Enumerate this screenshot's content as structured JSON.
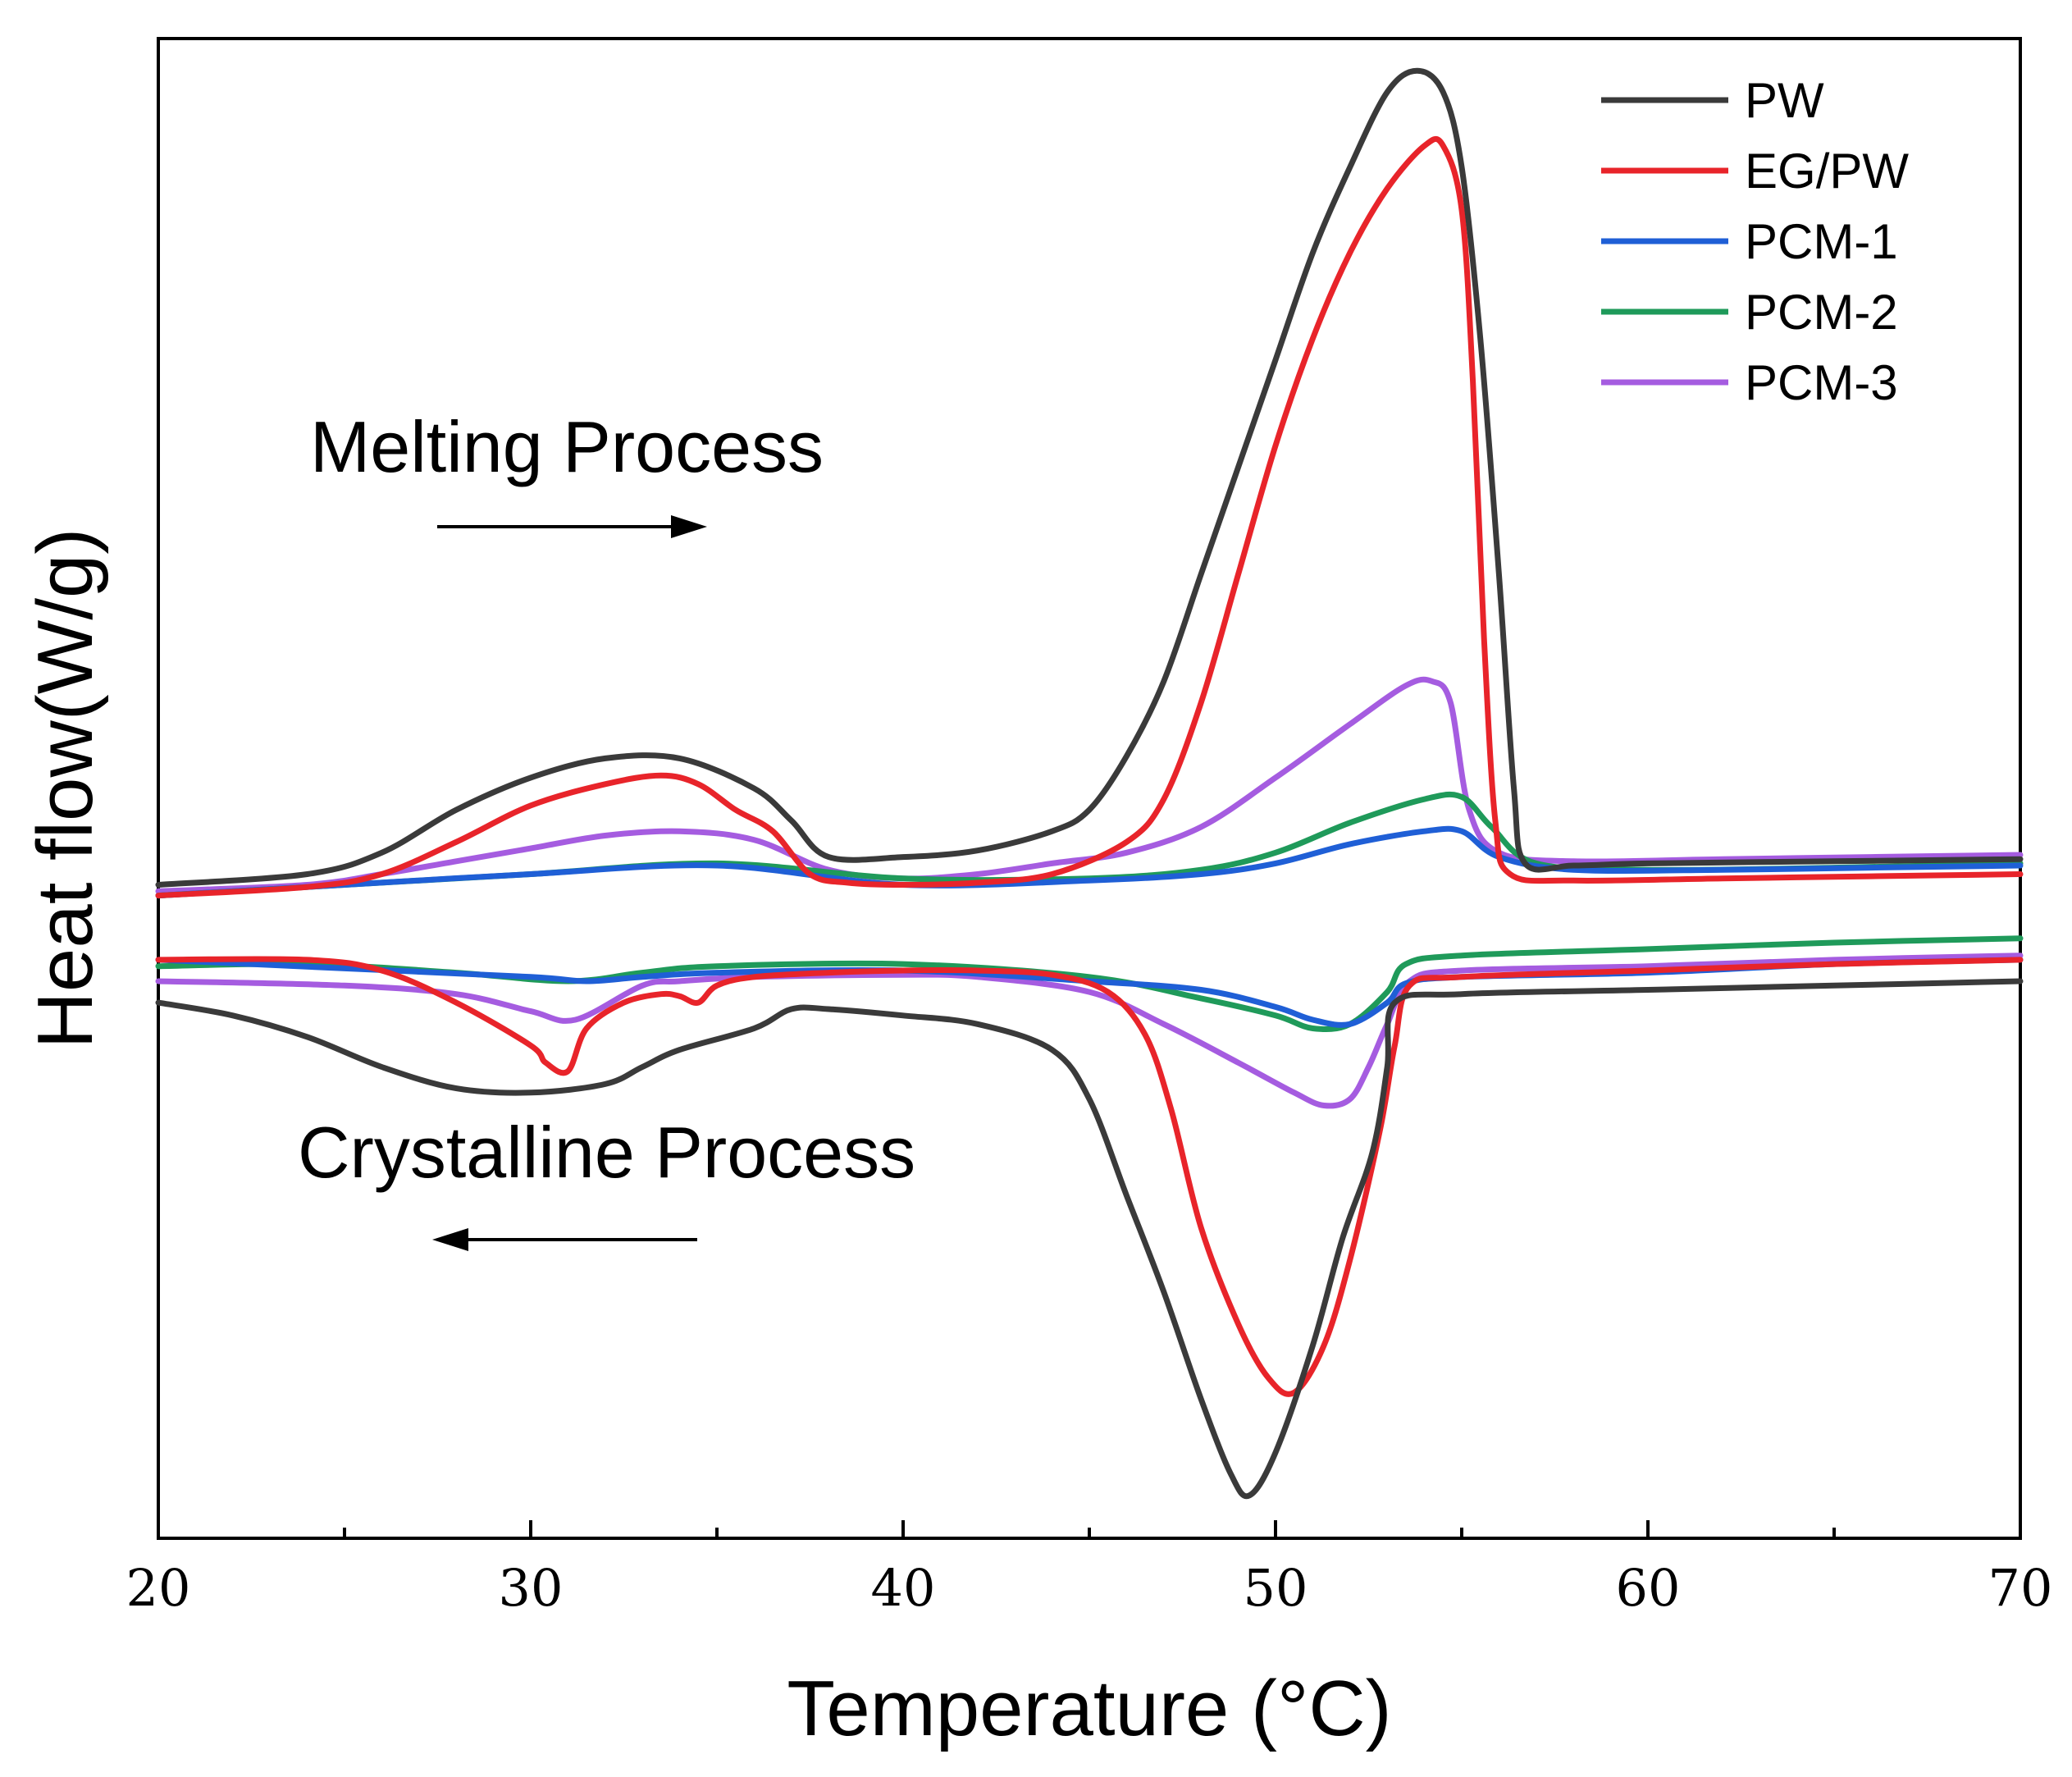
{
  "chart_data": {
    "type": "line",
    "title": "",
    "xlabel": "Temperature (°C)",
    "ylabel": "Heat flow(W/g)",
    "xlim": [
      20,
      70
    ],
    "ylim": [
      -3.0,
      4.0
    ],
    "x_ticks": [
      20,
      30,
      40,
      50,
      60,
      70
    ],
    "x_minor_step": 5,
    "y_tick_labels": false,
    "grid": false,
    "legend_position": "top-right",
    "annotations": [
      {
        "text": "Melting Process",
        "arrow": "right"
      },
      {
        "text": "Crystalline Process",
        "arrow": "left"
      }
    ],
    "series": [
      {
        "name": "PW",
        "color": "#3a3a3a",
        "heating": [
          [
            20,
            0.05
          ],
          [
            24,
            0.1
          ],
          [
            26,
            0.2
          ],
          [
            28,
            0.4
          ],
          [
            30,
            0.55
          ],
          [
            32,
            0.64
          ],
          [
            34,
            0.64
          ],
          [
            36,
            0.5
          ],
          [
            37,
            0.35
          ],
          [
            38,
            0.18
          ],
          [
            40,
            0.18
          ],
          [
            42,
            0.21
          ],
          [
            44,
            0.3
          ],
          [
            45,
            0.4
          ],
          [
            46,
            0.65
          ],
          [
            47,
            1.0
          ],
          [
            48,
            1.5
          ],
          [
            49,
            2.0
          ],
          [
            50,
            2.5
          ],
          [
            51,
            3.0
          ],
          [
            52,
            3.4
          ],
          [
            53,
            3.75
          ],
          [
            53.8,
            3.85
          ],
          [
            54.5,
            3.75
          ],
          [
            55,
            3.4
          ],
          [
            55.5,
            2.6
          ],
          [
            56,
            1.5
          ],
          [
            56.4,
            0.5
          ],
          [
            56.7,
            0.15
          ],
          [
            58,
            0.14
          ],
          [
            60,
            0.15
          ],
          [
            65,
            0.16
          ],
          [
            70,
            0.17
          ]
        ],
        "cooling": [
          [
            70,
            -0.4
          ],
          [
            65,
            -0.42
          ],
          [
            60,
            -0.44
          ],
          [
            55,
            -0.46
          ],
          [
            53.2,
            -0.5
          ],
          [
            53,
            -0.8
          ],
          [
            52.6,
            -1.2
          ],
          [
            51.8,
            -1.6
          ],
          [
            51,
            -2.1
          ],
          [
            50,
            -2.6
          ],
          [
            49.3,
            -2.8
          ],
          [
            48.8,
            -2.7
          ],
          [
            48,
            -2.35
          ],
          [
            47,
            -1.85
          ],
          [
            46,
            -1.4
          ],
          [
            45,
            -0.95
          ],
          [
            44,
            -0.72
          ],
          [
            42,
            -0.6
          ],
          [
            40,
            -0.56
          ],
          [
            38,
            -0.53
          ],
          [
            37,
            -0.53
          ],
          [
            36,
            -0.62
          ],
          [
            34,
            -0.72
          ],
          [
            33,
            -0.8
          ],
          [
            32,
            -0.88
          ],
          [
            30,
            -0.92
          ],
          [
            28,
            -0.9
          ],
          [
            26,
            -0.8
          ],
          [
            24,
            -0.66
          ],
          [
            22,
            -0.56
          ],
          [
            20,
            -0.5
          ]
        ]
      },
      {
        "name": "EG/PW",
        "color": "#e8242a",
        "heating": [
          [
            20,
            0.0
          ],
          [
            24,
            0.04
          ],
          [
            26,
            0.1
          ],
          [
            28,
            0.25
          ],
          [
            30,
            0.42
          ],
          [
            32,
            0.52
          ],
          [
            33.5,
            0.56
          ],
          [
            34.5,
            0.52
          ],
          [
            35.5,
            0.4
          ],
          [
            36.5,
            0.3
          ],
          [
            37.5,
            0.1
          ],
          [
            38.5,
            0.06
          ],
          [
            40,
            0.05
          ],
          [
            42,
            0.06
          ],
          [
            44,
            0.1
          ],
          [
            46,
            0.25
          ],
          [
            47,
            0.45
          ],
          [
            48,
            0.9
          ],
          [
            49,
            1.5
          ],
          [
            50,
            2.1
          ],
          [
            51,
            2.6
          ],
          [
            52,
            3.0
          ],
          [
            53,
            3.3
          ],
          [
            54,
            3.5
          ],
          [
            54.5,
            3.5
          ],
          [
            55,
            3.2
          ],
          [
            55.3,
            2.4
          ],
          [
            55.6,
            1.2
          ],
          [
            55.9,
            0.35
          ],
          [
            56.3,
            0.1
          ],
          [
            58,
            0.07
          ],
          [
            62,
            0.08
          ],
          [
            66,
            0.09
          ],
          [
            70,
            0.1
          ]
        ],
        "cooling": [
          [
            70,
            -0.3
          ],
          [
            65,
            -0.32
          ],
          [
            60,
            -0.35
          ],
          [
            55,
            -0.38
          ],
          [
            53.6,
            -0.42
          ],
          [
            53.2,
            -0.7
          ],
          [
            52.8,
            -1.1
          ],
          [
            52,
            -1.7
          ],
          [
            51.3,
            -2.1
          ],
          [
            50.5,
            -2.32
          ],
          [
            49.8,
            -2.25
          ],
          [
            49,
            -2.0
          ],
          [
            48,
            -1.55
          ],
          [
            47.2,
            -1.0
          ],
          [
            46.5,
            -0.65
          ],
          [
            45.5,
            -0.45
          ],
          [
            44,
            -0.37
          ],
          [
            42,
            -0.35
          ],
          [
            40,
            -0.35
          ],
          [
            38,
            -0.36
          ],
          [
            36,
            -0.38
          ],
          [
            35,
            -0.42
          ],
          [
            34.5,
            -0.5
          ],
          [
            34,
            -0.47
          ],
          [
            33.5,
            -0.46
          ],
          [
            32.5,
            -0.5
          ],
          [
            31.5,
            -0.62
          ],
          [
            31,
            -0.82
          ],
          [
            30.4,
            -0.78
          ],
          [
            30,
            -0.7
          ],
          [
            28,
            -0.5
          ],
          [
            26,
            -0.35
          ],
          [
            24,
            -0.3
          ],
          [
            20,
            -0.3
          ]
        ]
      },
      {
        "name": "PCM-1",
        "color": "#1f5fd6",
        "heating": [
          [
            20,
            0.0
          ],
          [
            25,
            0.05
          ],
          [
            30,
            0.1
          ],
          [
            35,
            0.14
          ],
          [
            40,
            0.05
          ],
          [
            45,
            0.07
          ],
          [
            48,
            0.1
          ],
          [
            50,
            0.15
          ],
          [
            52,
            0.24
          ],
          [
            54,
            0.3
          ],
          [
            55,
            0.3
          ],
          [
            56,
            0.18
          ],
          [
            58,
            0.12
          ],
          [
            62,
            0.12
          ],
          [
            66,
            0.13
          ],
          [
            70,
            0.14
          ]
        ],
        "cooling": [
          [
            70,
            -0.3
          ],
          [
            65,
            -0.32
          ],
          [
            60,
            -0.36
          ],
          [
            55,
            -0.38
          ],
          [
            53.5,
            -0.41
          ],
          [
            53,
            -0.5
          ],
          [
            52,
            -0.6
          ],
          [
            51,
            -0.58
          ],
          [
            50,
            -0.52
          ],
          [
            48,
            -0.44
          ],
          [
            45,
            -0.4
          ],
          [
            40,
            -0.35
          ],
          [
            35,
            -0.36
          ],
          [
            33,
            -0.38
          ],
          [
            31.5,
            -0.4
          ],
          [
            30,
            -0.38
          ],
          [
            25,
            -0.34
          ],
          [
            20,
            -0.3
          ]
        ]
      },
      {
        "name": "PCM-2",
        "color": "#1f9a5a",
        "heating": [
          [
            20,
            0.0
          ],
          [
            25,
            0.05
          ],
          [
            30,
            0.1
          ],
          [
            35,
            0.15
          ],
          [
            40,
            0.08
          ],
          [
            45,
            0.08
          ],
          [
            48,
            0.12
          ],
          [
            50,
            0.2
          ],
          [
            52,
            0.34
          ],
          [
            54,
            0.45
          ],
          [
            55,
            0.46
          ],
          [
            55.8,
            0.32
          ],
          [
            57,
            0.15
          ],
          [
            60,
            0.12
          ],
          [
            65,
            0.13
          ],
          [
            70,
            0.15
          ]
        ],
        "cooling": [
          [
            70,
            -0.2
          ],
          [
            65,
            -0.22
          ],
          [
            60,
            -0.25
          ],
          [
            55,
            -0.28
          ],
          [
            53.5,
            -0.32
          ],
          [
            53,
            -0.45
          ],
          [
            52,
            -0.6
          ],
          [
            51,
            -0.62
          ],
          [
            50,
            -0.56
          ],
          [
            48,
            -0.48
          ],
          [
            45,
            -0.38
          ],
          [
            40,
            -0.32
          ],
          [
            35,
            -0.33
          ],
          [
            33,
            -0.36
          ],
          [
            31,
            -0.4
          ],
          [
            28,
            -0.36
          ],
          [
            24,
            -0.32
          ],
          [
            20,
            -0.33
          ]
        ]
      },
      {
        "name": "PCM-3",
        "color": "#a55ce0",
        "heating": [
          [
            20,
            0.02
          ],
          [
            24,
            0.05
          ],
          [
            26,
            0.1
          ],
          [
            28,
            0.16
          ],
          [
            30,
            0.22
          ],
          [
            32,
            0.28
          ],
          [
            34,
            0.3
          ],
          [
            36,
            0.26
          ],
          [
            38,
            0.12
          ],
          [
            40,
            0.08
          ],
          [
            42,
            0.1
          ],
          [
            44,
            0.15
          ],
          [
            46,
            0.2
          ],
          [
            48,
            0.32
          ],
          [
            50,
            0.55
          ],
          [
            52,
            0.8
          ],
          [
            53.5,
            0.98
          ],
          [
            54.2,
            1.0
          ],
          [
            54.7,
            0.9
          ],
          [
            55.2,
            0.4
          ],
          [
            56,
            0.2
          ],
          [
            58,
            0.16
          ],
          [
            62,
            0.17
          ],
          [
            66,
            0.18
          ],
          [
            70,
            0.19
          ]
        ],
        "cooling": [
          [
            70,
            -0.28
          ],
          [
            65,
            -0.3
          ],
          [
            60,
            -0.33
          ],
          [
            55,
            -0.35
          ],
          [
            53.6,
            -0.4
          ],
          [
            53,
            -0.6
          ],
          [
            52.5,
            -0.8
          ],
          [
            52,
            -0.95
          ],
          [
            51.3,
            -0.98
          ],
          [
            50.5,
            -0.92
          ],
          [
            49,
            -0.78
          ],
          [
            47,
            -0.6
          ],
          [
            45,
            -0.45
          ],
          [
            42,
            -0.38
          ],
          [
            40,
            -0.37
          ],
          [
            36,
            -0.38
          ],
          [
            34,
            -0.4
          ],
          [
            33,
            -0.42
          ],
          [
            31.2,
            -0.58
          ],
          [
            30,
            -0.54
          ],
          [
            28,
            -0.46
          ],
          [
            25,
            -0.42
          ],
          [
            20,
            -0.4
          ]
        ]
      }
    ]
  }
}
